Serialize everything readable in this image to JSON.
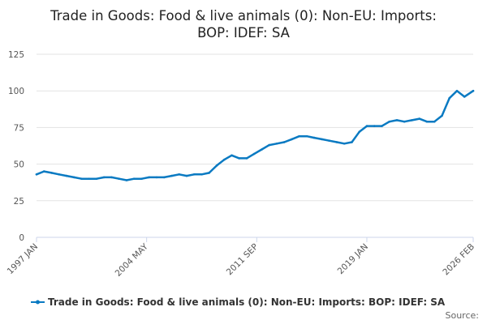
{
  "chart_data": {
    "type": "line",
    "title_lines": [
      "Trade in Goods: Food & live animals (0): Non-EU: Imports:",
      "BOP: IDEF: SA"
    ],
    "xlabel": "",
    "ylabel": "",
    "ylim": [
      0,
      125
    ],
    "yticks": [
      "0",
      "25",
      "50",
      "75",
      "100",
      "125"
    ],
    "x_range": [
      "1997 JAN",
      "2026 FEB"
    ],
    "xticks": [
      "1997 JAN",
      "2004 MAY",
      "2011 SEP",
      "2019 JAN",
      "2026 FEB"
    ],
    "grid": true,
    "legend_position": "bottom",
    "colors": {
      "series": "#0a7ac2",
      "grid": "#e3e3e3",
      "axis": "#ccd6eb"
    },
    "series": [
      {
        "name": "Trade in Goods: Food & live animals (0): Non-EU: Imports: BOP: IDEF: SA",
        "x": [
          "1997 JAN",
          "1997 JUL",
          "1998 JAN",
          "1998 JUL",
          "1999 JAN",
          "1999 JUL",
          "2000 JAN",
          "2000 JUL",
          "2001 JAN",
          "2001 JUL",
          "2002 JAN",
          "2002 JUL",
          "2003 JAN",
          "2003 JUL",
          "2004 JAN",
          "2004 JUL",
          "2005 JAN",
          "2005 JUL",
          "2006 JAN",
          "2006 JUL",
          "2007 JAN",
          "2007 JUL",
          "2008 JAN",
          "2008 JUL",
          "2009 JAN",
          "2009 JUL",
          "2010 JAN",
          "2010 JUL",
          "2011 JAN",
          "2011 JUL",
          "2012 JAN",
          "2012 JUL",
          "2013 JAN",
          "2013 JUL",
          "2014 JAN",
          "2014 JUL",
          "2015 JAN",
          "2015 JUL",
          "2016 JAN",
          "2016 JUL",
          "2017 JAN",
          "2017 JUL",
          "2018 JAN",
          "2018 JUL",
          "2019 JAN",
          "2019 JUL",
          "2020 JAN",
          "2020 JUL",
          "2021 JAN",
          "2021 JUL",
          "2022 JAN",
          "2022 JUL",
          "2023 JAN",
          "2023 JUL",
          "2024 JAN",
          "2024 JUL",
          "2025 JAN",
          "2025 JUL",
          "2026 FEB"
        ],
        "values": [
          43,
          45,
          44,
          43,
          42,
          41,
          40,
          40,
          40,
          41,
          41,
          40,
          39,
          40,
          40,
          41,
          41,
          41,
          42,
          43,
          42,
          43,
          43,
          44,
          49,
          53,
          56,
          54,
          54,
          57,
          60,
          63,
          64,
          65,
          67,
          69,
          69,
          68,
          67,
          66,
          65,
          64,
          65,
          72,
          76,
          76,
          76,
          79,
          80,
          79,
          80,
          81,
          79,
          79,
          83,
          95,
          100,
          96,
          100
        ]
      }
    ]
  },
  "source": "Source:"
}
